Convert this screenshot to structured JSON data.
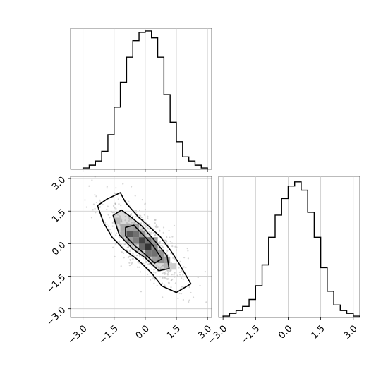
{
  "chart_data": [
    {
      "type": "histogram",
      "panel": "top-left",
      "variable": "x",
      "bin_edges": [
        -3.3,
        -3.0,
        -2.7,
        -2.4,
        -2.1,
        -1.8,
        -1.5,
        -1.2,
        -0.9,
        -0.6,
        -0.3,
        0.0,
        0.3,
        0.6,
        0.9,
        1.2,
        1.5,
        1.8,
        2.1,
        2.4,
        2.7,
        3.0,
        3.3
      ],
      "counts": [
        0,
        1,
        3,
        6,
        13,
        25,
        45,
        63,
        81,
        93,
        99,
        100,
        95,
        81,
        54,
        34,
        20,
        9,
        6,
        3,
        1,
        0
      ],
      "xlim": [
        -3.6,
        3.2
      ],
      "ylim": [
        0,
        102
      ],
      "xticks": [
        -3.0,
        -1.5,
        0.0,
        1.5,
        3.0
      ],
      "grid": true
    },
    {
      "type": "histogram",
      "panel": "bottom-right",
      "variable": "y",
      "bin_edges": [
        -3.3,
        -3.0,
        -2.7,
        -2.4,
        -2.1,
        -1.8,
        -1.5,
        -1.2,
        -0.9,
        -0.6,
        -0.3,
        0.0,
        0.3,
        0.6,
        0.9,
        1.2,
        1.5,
        1.8,
        2.1,
        2.4,
        2.7,
        3.0,
        3.3
      ],
      "counts": [
        0,
        1,
        3,
        5,
        8,
        13,
        23,
        38,
        58,
        74,
        86,
        95,
        98,
        92,
        76,
        58,
        36,
        19,
        9,
        5,
        3,
        1
      ],
      "xlim": [
        -3.2,
        3.3
      ],
      "ylim": [
        0,
        102
      ],
      "xticks": [
        -3.0,
        -1.5,
        0.0,
        1.5,
        3.0
      ],
      "xtick_labels": [
        "-3.0",
        "-1.5",
        "0.0",
        "1.5",
        "3.0"
      ],
      "grid": true
    },
    {
      "type": "2d-histogram-contour",
      "panel": "bottom-left",
      "x_variable": "x",
      "y_variable": "y",
      "xlim": [
        -3.6,
        3.2
      ],
      "ylim": [
        -3.4,
        3.1
      ],
      "xticks": [
        -3.0,
        -1.5,
        0.0,
        1.5,
        3.0
      ],
      "xtick_labels": [
        "-3.0",
        "-1.5",
        "0.0",
        "1.5",
        "3.0"
      ],
      "yticks": [
        -3.0,
        -1.5,
        0.0,
        1.5,
        3.0
      ],
      "ytick_labels": [
        "-3.0",
        "-1.5",
        "0.0",
        "1.5",
        "3.0"
      ],
      "grid": true,
      "correlation": -0.7,
      "scatter_points": 700,
      "density_cells": [
        {
          "x": -1.35,
          "y": 1.05,
          "v": 0.12
        },
        {
          "x": -1.05,
          "y": 0.75,
          "v": 0.22
        },
        {
          "x": -0.75,
          "y": 0.75,
          "v": 0.25
        },
        {
          "x": -0.75,
          "y": 0.45,
          "v": 0.75
        },
        {
          "x": -0.45,
          "y": 0.45,
          "v": 0.6
        },
        {
          "x": -0.45,
          "y": 0.15,
          "v": 0.5
        },
        {
          "x": -0.15,
          "y": 0.15,
          "v": 0.9
        },
        {
          "x": 0.15,
          "y": 0.15,
          "v": 0.55
        },
        {
          "x": -0.15,
          "y": -0.15,
          "v": 0.65
        },
        {
          "x": 0.15,
          "y": -0.15,
          "v": 1.0
        },
        {
          "x": 0.45,
          "y": -0.15,
          "v": 0.45
        },
        {
          "x": 0.15,
          "y": -0.45,
          "v": 0.55
        },
        {
          "x": 0.45,
          "y": -0.45,
          "v": 0.6
        },
        {
          "x": 0.75,
          "y": -0.45,
          "v": 0.35
        },
        {
          "x": 0.75,
          "y": -0.75,
          "v": 0.4
        },
        {
          "x": 1.05,
          "y": -0.75,
          "v": 0.3
        },
        {
          "x": 1.05,
          "y": -1.05,
          "v": 0.15
        },
        {
          "x": 1.35,
          "y": -1.05,
          "v": 0.1
        },
        {
          "x": -0.75,
          "y": 0.15,
          "v": 0.3
        },
        {
          "x": -0.45,
          "y": 0.75,
          "v": 0.3
        },
        {
          "x": 0.45,
          "y": -0.75,
          "v": 0.3
        },
        {
          "x": -1.05,
          "y": 0.45,
          "v": 0.18
        },
        {
          "x": 0.45,
          "y": 0.15,
          "v": 0.3
        },
        {
          "x": -0.15,
          "y": 0.45,
          "v": 0.35
        }
      ],
      "contours": [
        {
          "level": "outer",
          "points": [
            [
              -2.3,
              1.75
            ],
            [
              -1.85,
              2.05
            ],
            [
              -1.2,
              2.35
            ],
            [
              -0.95,
              1.9
            ],
            [
              -0.35,
              1.25
            ],
            [
              0.7,
              0.35
            ],
            [
              1.25,
              -0.35
            ],
            [
              1.65,
              -0.95
            ],
            [
              2.2,
              -1.85
            ],
            [
              1.5,
              -2.25
            ],
            [
              0.8,
              -1.95
            ],
            [
              0.3,
              -1.35
            ],
            [
              -0.35,
              -0.75
            ],
            [
              -1.05,
              -0.25
            ],
            [
              -1.6,
              0.3
            ],
            [
              -2.0,
              0.95
            ],
            [
              -2.3,
              1.75
            ]
          ]
        },
        {
          "level": "middle",
          "points": [
            [
              -1.55,
              1.3
            ],
            [
              -1.15,
              1.55
            ],
            [
              -0.65,
              1.2
            ],
            [
              -0.15,
              0.8
            ],
            [
              0.4,
              0.2
            ],
            [
              1.05,
              -0.55
            ],
            [
              1.15,
              -1.15
            ],
            [
              0.65,
              -1.25
            ],
            [
              0.0,
              -0.65
            ],
            [
              -0.6,
              -0.25
            ],
            [
              -1.25,
              0.4
            ],
            [
              -1.55,
              1.3
            ]
          ]
        },
        {
          "level": "inner",
          "points": [
            [
              -0.95,
              0.75
            ],
            [
              -0.55,
              0.85
            ],
            [
              -0.15,
              0.45
            ],
            [
              0.35,
              -0.05
            ],
            [
              0.8,
              -0.7
            ],
            [
              0.45,
              -0.9
            ],
            [
              -0.05,
              -0.45
            ],
            [
              -0.5,
              -0.1
            ],
            [
              -0.95,
              0.35
            ],
            [
              -0.95,
              0.75
            ]
          ]
        }
      ]
    }
  ]
}
